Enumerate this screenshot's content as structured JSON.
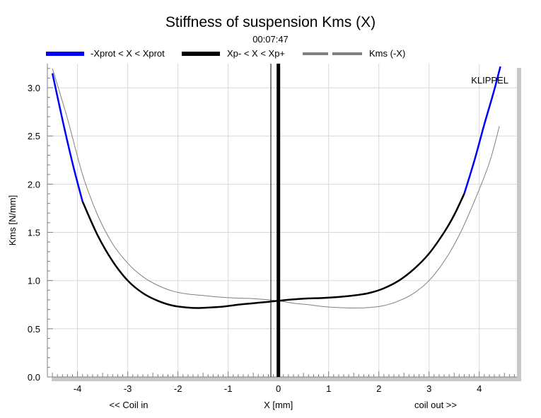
{
  "chart_data": {
    "type": "line",
    "title": "Stiffness of suspension Kms (X)",
    "subtitle": "00:07:47",
    "watermark": "KLIPPEL",
    "xlabel": "X [mm]",
    "xlabel_left": "<< Coil in",
    "xlabel_right": "coil out >>",
    "ylabel": "Kms [N/mm]",
    "xlim": [
      -4.6,
      4.75
    ],
    "ylim": [
      0.0,
      3.25
    ],
    "xticks": [
      -4,
      -3,
      -2,
      -1,
      0,
      1,
      2,
      3,
      4
    ],
    "yticks": [
      0.0,
      0.5,
      1.0,
      1.5,
      2.0,
      2.5,
      3.0
    ],
    "grid": true,
    "legend_position": "top",
    "series": [
      {
        "name": "-Xprot < X < Xprot",
        "color": "#0000ff",
        "style": "solid",
        "x": [
          -4.5,
          -4.3,
          -4.1,
          -3.9,
          3.7,
          3.9,
          4.1,
          4.3,
          4.42
        ],
        "y": [
          3.15,
          2.67,
          2.22,
          1.82,
          1.9,
          2.24,
          2.62,
          2.98,
          3.22
        ]
      },
      {
        "name": "Xp- < X < Xp+",
        "color": "#000000",
        "style": "solid",
        "x": [
          -3.9,
          -3.6,
          -3.3,
          -3.0,
          -2.7,
          -2.4,
          -2.1,
          -1.8,
          -1.6,
          -1.4,
          -1.1,
          -0.8,
          -0.5,
          -0.2,
          0.0,
          0.3,
          0.6,
          0.9,
          1.2,
          1.5,
          1.8,
          2.1,
          2.4,
          2.7,
          3.0,
          3.3,
          3.5,
          3.7
        ],
        "y": [
          1.82,
          1.47,
          1.2,
          1.0,
          0.87,
          0.79,
          0.74,
          0.72,
          0.715,
          0.72,
          0.73,
          0.75,
          0.765,
          0.78,
          0.79,
          0.805,
          0.815,
          0.82,
          0.83,
          0.845,
          0.87,
          0.92,
          1.0,
          1.12,
          1.28,
          1.5,
          1.68,
          1.9
        ]
      },
      {
        "name": "Kms (-X)",
        "color": "#808080",
        "style": "thin",
        "x": [
          -4.5,
          -4.2,
          -3.9,
          -3.6,
          -3.3,
          -3.0,
          -2.7,
          -2.4,
          -2.1,
          -1.8,
          -1.5,
          -1.2,
          -0.9,
          -0.6,
          -0.3,
          0.0,
          0.3,
          0.6,
          0.9,
          1.2,
          1.5,
          1.8,
          2.1,
          2.4,
          2.7,
          3.0,
          3.3,
          3.6,
          3.9,
          4.2,
          4.4
        ],
        "y": [
          3.2,
          2.68,
          2.1,
          1.68,
          1.38,
          1.18,
          1.04,
          0.95,
          0.89,
          0.86,
          0.845,
          0.83,
          0.82,
          0.815,
          0.805,
          0.79,
          0.765,
          0.75,
          0.73,
          0.72,
          0.715,
          0.72,
          0.74,
          0.79,
          0.87,
          1.0,
          1.2,
          1.47,
          1.82,
          2.22,
          2.6
        ]
      }
    ],
    "markers": [
      {
        "name": "Xprot marker",
        "x": -0.15,
        "color": "#000000",
        "width": "thin"
      },
      {
        "name": "X position marker",
        "x": 0.0,
        "color": "#000000",
        "width": "thick"
      }
    ]
  }
}
